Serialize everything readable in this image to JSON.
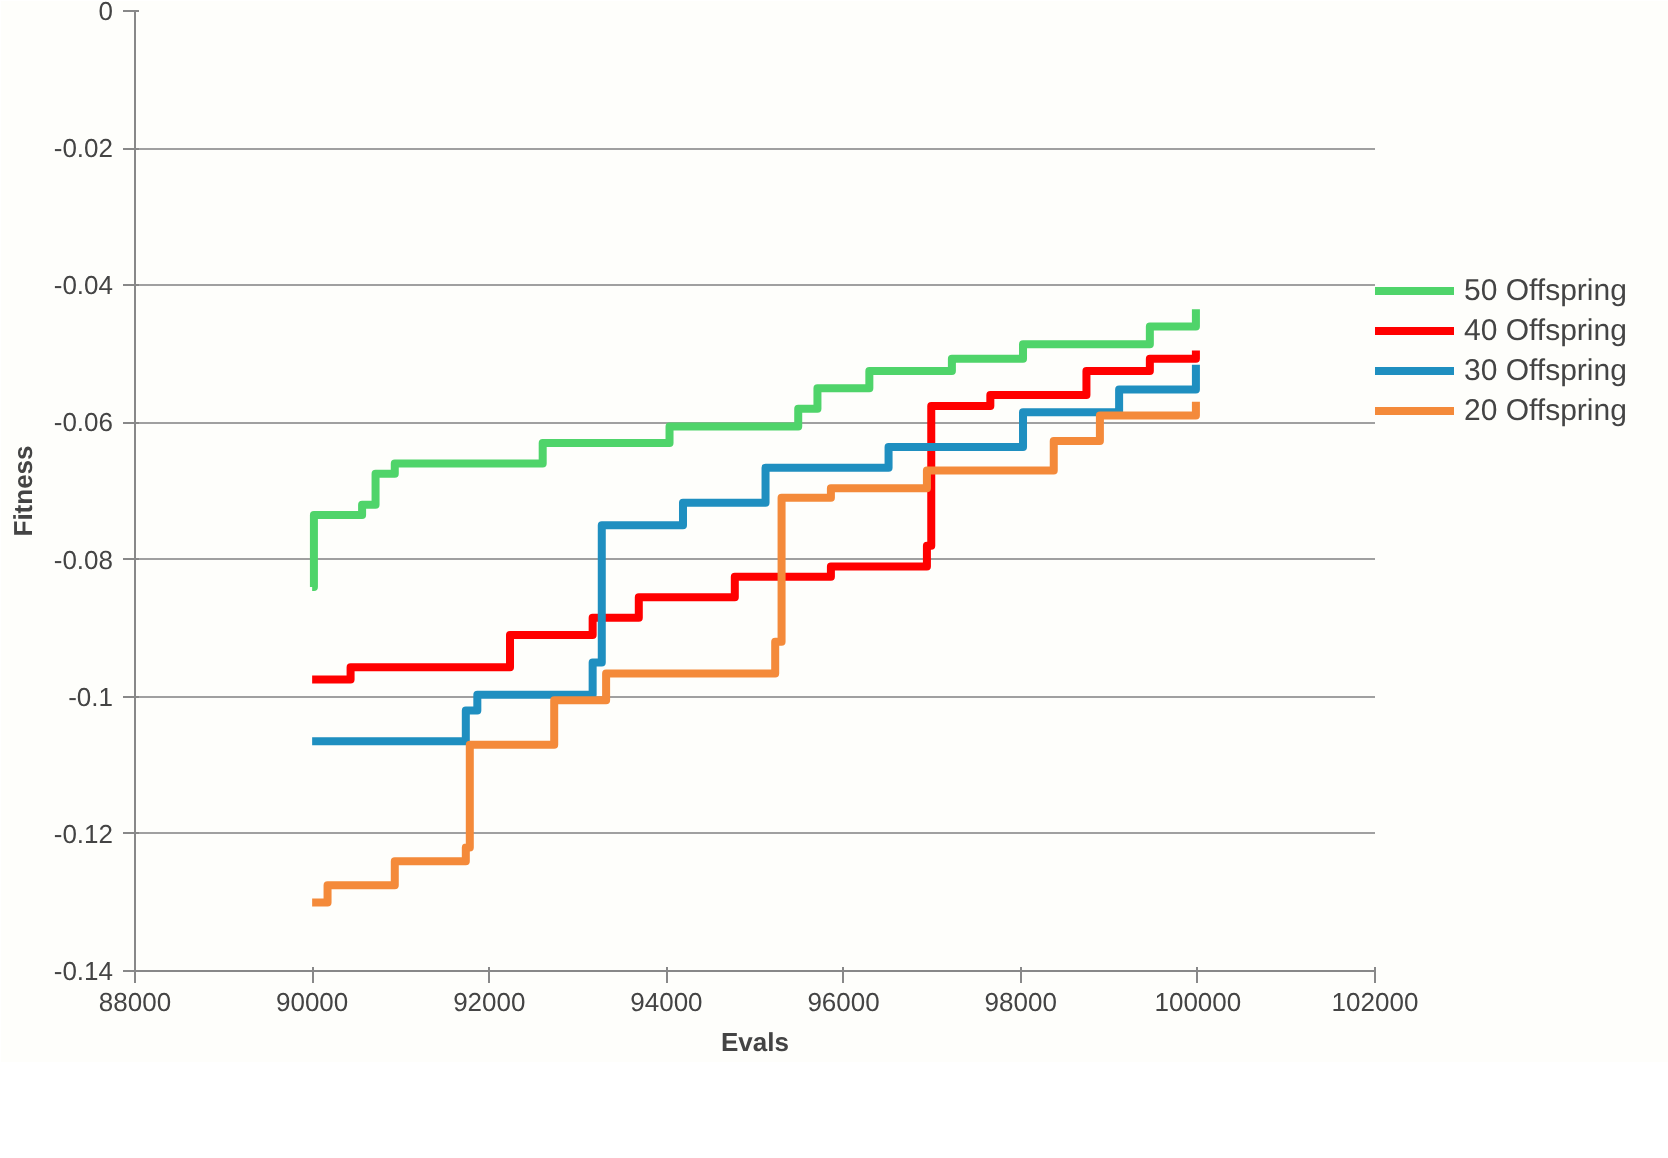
{
  "chart_data": {
    "type": "step",
    "xlabel": "Evals",
    "ylabel": "Fitness",
    "xlim": [
      88000,
      102000
    ],
    "xticks": [
      88000,
      90000,
      92000,
      94000,
      96000,
      98000,
      100000,
      102000
    ],
    "ylim": [
      -0.14,
      0
    ],
    "yticks": [
      -0.14,
      -0.12,
      -0.1,
      -0.08,
      -0.06,
      -0.04,
      -0.02,
      0
    ],
    "grid": "y",
    "legend": "right",
    "marker": "none",
    "line_style": "solid",
    "series": [
      {
        "name": "50 Offspring",
        "color": "#4fd46a",
        "x": [
          90000,
          90020,
          90564,
          90716,
          90933,
          92603,
          94035,
          95488,
          95705,
          96291,
          97223,
          98026,
          99458,
          99978
        ],
        "values": [
          -0.084,
          -0.0735,
          -0.072,
          -0.0675,
          -0.066,
          -0.063,
          -0.0606,
          -0.058,
          -0.055,
          -0.0525,
          -0.0507,
          -0.0486,
          -0.046,
          -0.0435
        ]
      },
      {
        "name": "40 Offspring",
        "color": "#ff0000",
        "x": [
          90000,
          90434,
          92234,
          93167,
          93688,
          94772,
          95857,
          96941,
          96990,
          97657,
          98742,
          99458,
          99978
        ],
        "values": [
          -0.0975,
          -0.0957,
          -0.091,
          -0.0885,
          -0.0855,
          -0.0825,
          -0.081,
          -0.078,
          -0.0576,
          -0.056,
          -0.0525,
          -0.0507,
          -0.0495
        ]
      },
      {
        "name": "30 Offspring",
        "color": "#1f8fc0",
        "x": [
          90000,
          91735,
          91865,
          93167,
          93270,
          94187,
          95119,
          96508,
          98026,
          99111,
          99978
        ],
        "values": [
          -0.1065,
          -0.102,
          -0.0997,
          -0.095,
          -0.075,
          -0.0717,
          -0.0666,
          -0.0636,
          -0.0585,
          -0.0552,
          -0.0516
        ]
      },
      {
        "name": "20 Offspring",
        "color": "#f48a3a",
        "x": [
          90000,
          90174,
          90933,
          91735,
          91780,
          92733,
          93319,
          95228,
          95300,
          95857,
          96941,
          98373,
          98894,
          99978
        ],
        "values": [
          -0.13,
          -0.1275,
          -0.124,
          -0.122,
          -0.107,
          -0.1005,
          -0.0966,
          -0.092,
          -0.071,
          -0.0696,
          -0.067,
          -0.0627,
          -0.059,
          -0.057
        ]
      }
    ]
  }
}
